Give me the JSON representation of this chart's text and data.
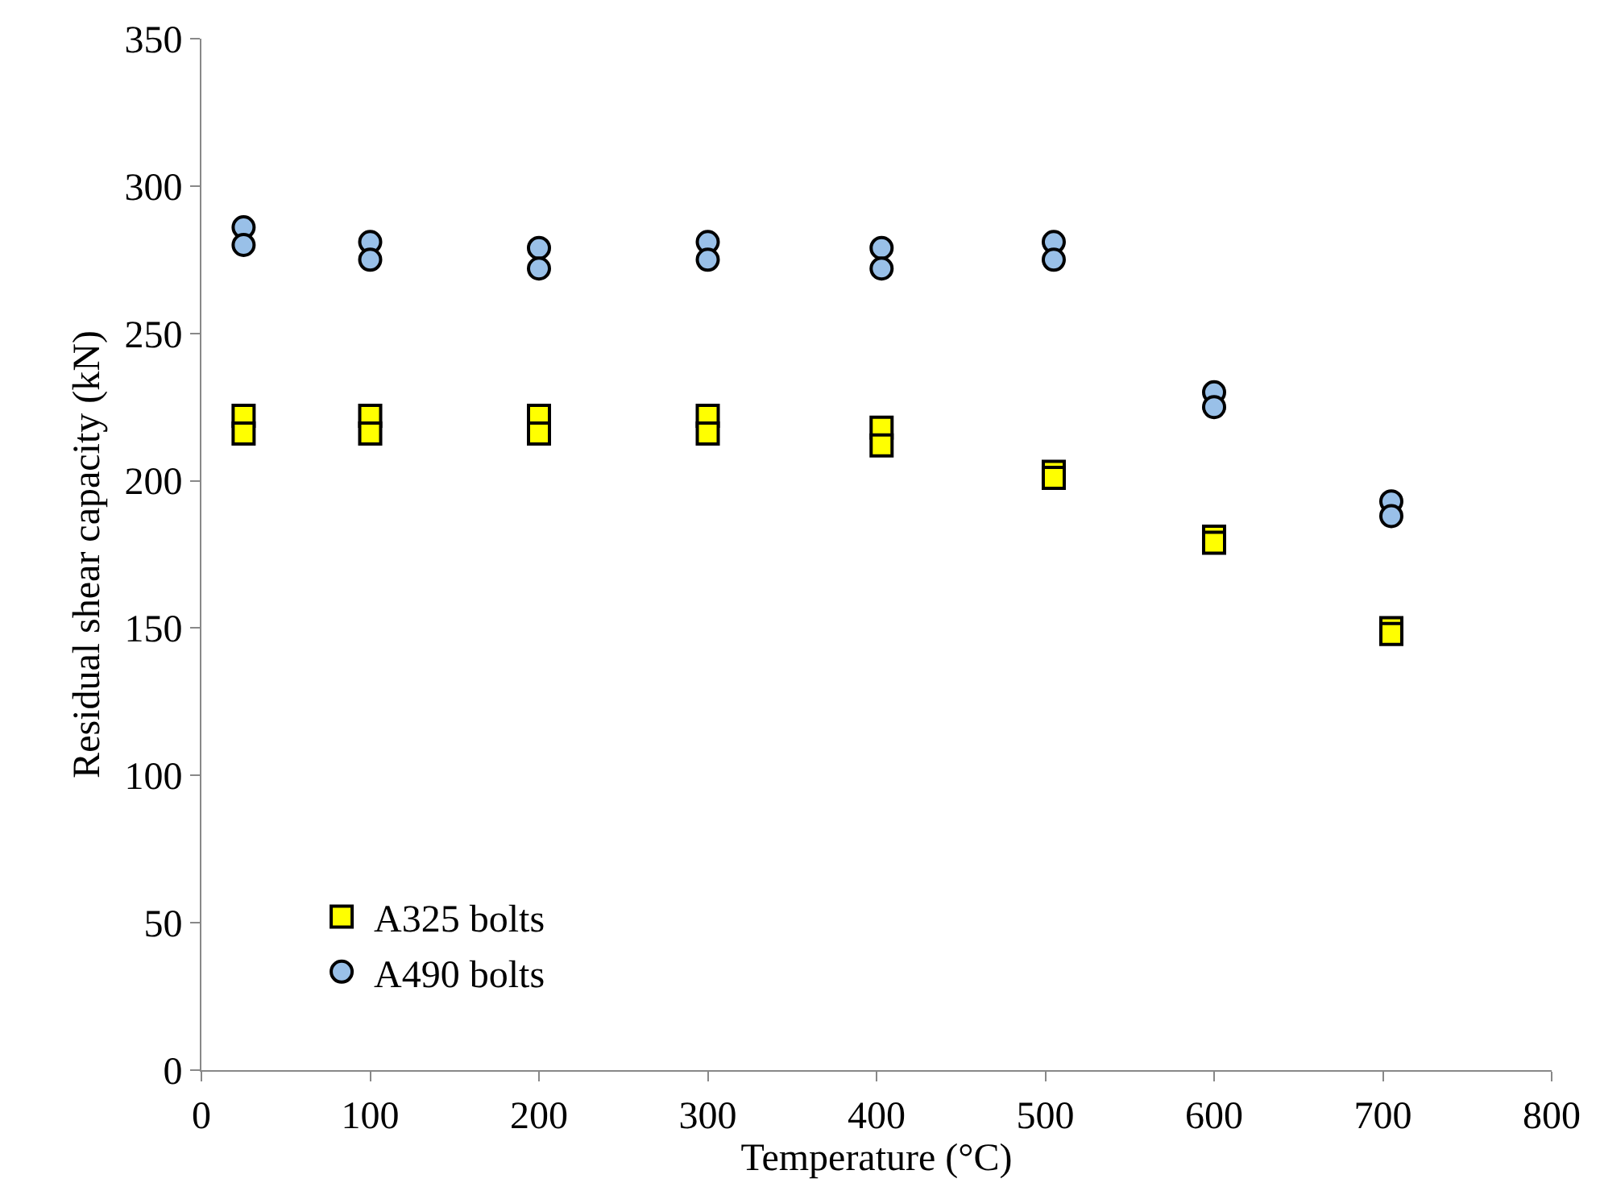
{
  "chart_data": {
    "type": "scatter",
    "xlabel": "Temperature (°C)",
    "ylabel": "Residual shear capacity (kN)",
    "xlim": [
      0,
      800
    ],
    "xticks": [
      0,
      100,
      200,
      300,
      400,
      500,
      600,
      700,
      800
    ],
    "ylim": [
      0,
      350
    ],
    "yticks": [
      0,
      50,
      100,
      150,
      200,
      250,
      300,
      350
    ],
    "grid": false,
    "legend": "bottom left",
    "series": [
      {
        "name": "A325 bolts",
        "color": "#ffff00",
        "marker": "square",
        "x": [
          25,
          25,
          100,
          100,
          200,
          200,
          300,
          300,
          403,
          403,
          505,
          505,
          600,
          600,
          705,
          705
        ],
        "values": [
          222,
          216,
          222,
          216,
          222,
          216,
          222,
          216,
          218,
          212,
          203,
          201,
          181,
          179,
          150,
          148
        ]
      },
      {
        "name": "A490 bolts",
        "color": "#99c0e8",
        "marker": "circle",
        "x": [
          25,
          25,
          100,
          100,
          200,
          200,
          300,
          300,
          403,
          403,
          505,
          505,
          600,
          600,
          705,
          705
        ],
        "values": [
          286,
          280,
          281,
          275,
          279,
          272,
          281,
          275,
          279,
          272,
          281,
          275,
          230,
          225,
          193,
          188
        ]
      }
    ]
  }
}
